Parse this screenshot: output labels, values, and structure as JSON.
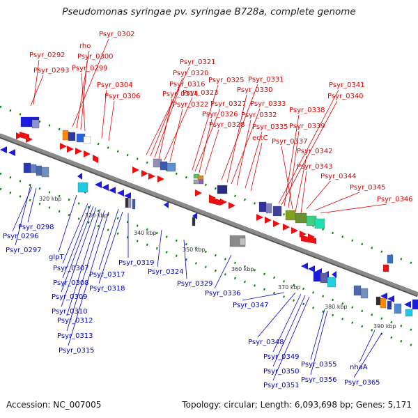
{
  "title": "Pseudomonas syringae pv. syringae B728a, complete genome",
  "footer": {
    "accession": "Accession: NC_007005",
    "info": "Topology: circular; Length: 6,093,698 bp; Genes: 5,171"
  },
  "colors": {
    "top_labels": "#e00000",
    "bottom_labels": "#0000cc",
    "backbone": "#8a8a8a",
    "ticks": "#008800"
  },
  "kbp_labels": [
    "320 kbp",
    "330 kbp",
    "340 kbp",
    "350 kbp",
    "360 kbp",
    "370 kbp",
    "380 kbp",
    "390 kbp"
  ],
  "top_labels": [
    "Psyr_0292",
    "Psyr_0293",
    "Psyr_0302",
    "rho",
    "Psyr_0300",
    "Psyr_0299",
    "Psyr_0304",
    "Psyr_0306",
    "Psyr_0321",
    "Psyr_0320",
    "Psyr_0316",
    "Psyr_0314",
    "Psyr_0323",
    "Psyr_0322",
    "Psyr_0325",
    "Psyr_0327",
    "Psyr_0326",
    "Psyr_0328",
    "Psyr_0331",
    "Psyr_0330",
    "Psyr_0333",
    "Psyr_0332",
    "Psyr_0335",
    "ectC",
    "Psyr_0341",
    "Psyr_0340",
    "Psyr_0338",
    "Psyr_0339",
    "Psyr_0337",
    "Psyr_0342",
    "Psyr_0343",
    "Psyr_0344",
    "Psyr_0345",
    "Psyr_0346"
  ],
  "bottom_labels": [
    "Psyr_0298",
    "Psyr_0296",
    "Psyr_0297",
    "glpT",
    "Psyr_0307",
    "Psyr_0308",
    "Psyr_0317",
    "Psyr_0319",
    "Psyr_0318",
    "Psyr_0309",
    "Psyr_0310",
    "Psyr_0312",
    "Psyr_0313",
    "Psyr_0315",
    "Psyr_0324",
    "Psyr_0329",
    "Psyr_0336",
    "Psyr_0347",
    "Psyr_0348",
    "Psyr_0349",
    "Psyr_0350",
    "Psyr_0351",
    "Psyr_0355",
    "Psyr_0356",
    "nhaA",
    "Psyr_0365"
  ]
}
